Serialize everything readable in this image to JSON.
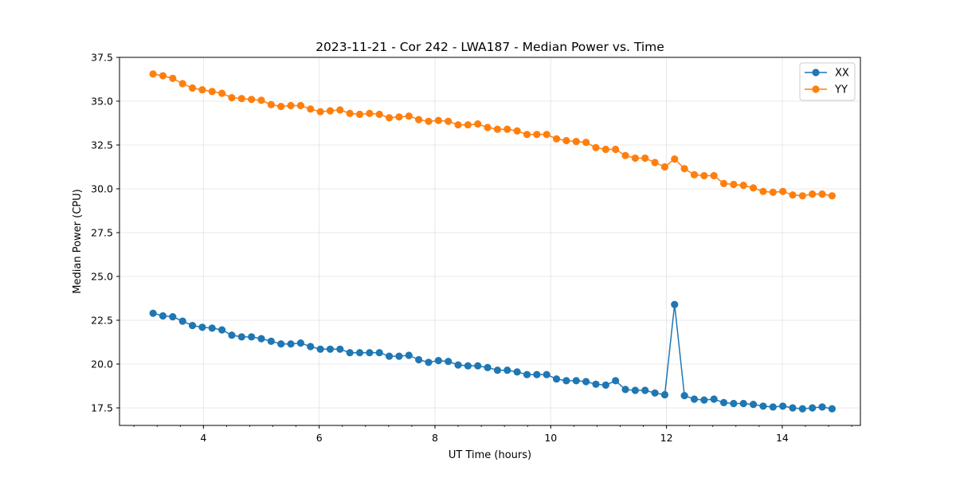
{
  "chart_data": {
    "type": "line",
    "title": "2023-11-21 - Cor 242 - LWA187 - Median Power vs. Time",
    "xlabel": "UT Time (hours)",
    "ylabel": "Median Power (CPU)",
    "xlim": [
      2.55,
      15.35
    ],
    "ylim": [
      16.5,
      37.5
    ],
    "xticks": [
      4,
      6,
      8,
      10,
      12,
      14
    ],
    "xtick_labels": [
      "4",
      "6",
      "8",
      "10",
      "12",
      "14"
    ],
    "xminor_step": 0.4,
    "yticks": [
      17.5,
      20.0,
      22.5,
      25.0,
      27.5,
      30.0,
      32.5,
      35.0,
      37.5
    ],
    "ytick_labels": [
      "17.5",
      "20.0",
      "22.5",
      "25.0",
      "27.5",
      "30.0",
      "32.5",
      "35.0",
      "37.5"
    ],
    "grid": true,
    "legend_position": "top-right",
    "x": [
      3.13,
      3.3,
      3.47,
      3.64,
      3.81,
      3.98,
      4.15,
      4.32,
      4.49,
      4.66,
      4.83,
      5.0,
      5.17,
      5.34,
      5.51,
      5.68,
      5.85,
      6.02,
      6.19,
      6.36,
      6.53,
      6.7,
      6.87,
      7.04,
      7.21,
      7.38,
      7.55,
      7.72,
      7.89,
      8.06,
      8.23,
      8.4,
      8.57,
      8.74,
      8.91,
      9.08,
      9.25,
      9.42,
      9.59,
      9.76,
      9.93,
      10.1,
      10.27,
      10.44,
      10.61,
      10.78,
      10.95,
      11.12,
      11.29,
      11.46,
      11.63,
      11.8,
      11.97,
      12.14,
      12.31,
      12.48,
      12.65,
      12.82,
      12.99,
      13.16,
      13.33,
      13.5,
      13.67,
      13.84,
      14.01,
      14.18,
      14.35,
      14.52,
      14.69,
      14.86
    ],
    "series": [
      {
        "name": "XX",
        "color": "#1f77b4",
        "values": [
          22.9,
          22.75,
          22.7,
          22.45,
          22.2,
          22.1,
          22.05,
          21.95,
          21.65,
          21.55,
          21.55,
          21.45,
          21.3,
          21.15,
          21.15,
          21.2,
          21.0,
          20.85,
          20.85,
          20.85,
          20.65,
          20.65,
          20.65,
          20.65,
          20.45,
          20.45,
          20.5,
          20.25,
          20.1,
          20.2,
          20.15,
          19.95,
          19.9,
          19.9,
          19.8,
          19.65,
          19.65,
          19.55,
          19.4,
          19.4,
          19.4,
          19.15,
          19.05,
          19.05,
          19.0,
          18.85,
          18.8,
          19.05,
          18.55,
          18.5,
          18.5,
          18.35,
          18.25,
          23.4,
          18.2,
          18.0,
          17.95,
          18.0,
          17.8,
          17.75,
          17.75,
          17.7,
          17.6,
          17.55,
          17.6,
          17.5,
          17.45,
          17.5,
          17.55,
          17.45
        ]
      },
      {
        "name": "YY",
        "color": "#ff7f0e",
        "values": [
          36.55,
          36.45,
          36.3,
          36.0,
          35.75,
          35.65,
          35.55,
          35.45,
          35.2,
          35.15,
          35.1,
          35.05,
          34.8,
          34.7,
          34.75,
          34.75,
          34.55,
          34.4,
          34.45,
          34.5,
          34.3,
          34.25,
          34.3,
          34.25,
          34.05,
          34.1,
          34.15,
          33.95,
          33.85,
          33.9,
          33.85,
          33.65,
          33.65,
          33.7,
          33.5,
          33.4,
          33.4,
          33.3,
          33.1,
          33.1,
          33.1,
          32.85,
          32.75,
          32.7,
          32.65,
          32.35,
          32.25,
          32.25,
          31.9,
          31.75,
          31.75,
          31.5,
          31.25,
          31.7,
          31.15,
          30.8,
          30.75,
          30.75,
          30.3,
          30.25,
          30.2,
          30.05,
          29.85,
          29.8,
          29.85,
          29.65,
          29.6,
          29.7,
          29.7,
          29.6
        ]
      }
    ]
  }
}
